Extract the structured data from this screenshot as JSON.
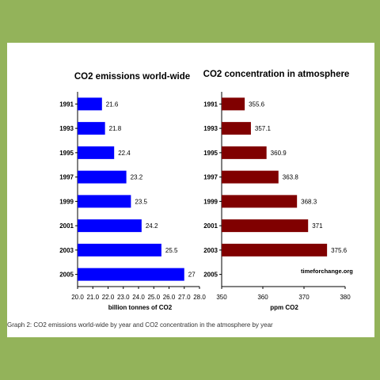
{
  "caption": "Graph 2: CO2 emissions world-wide by year and CO2 concentration in the atmosphere by year",
  "chart_data": [
    {
      "type": "bar",
      "orientation": "horizontal",
      "title": "CO2 emissions world-wide",
      "xlabel": "billion tonnes of CO2",
      "ylabel": "",
      "categories": [
        "1991",
        "1993",
        "1995",
        "1997",
        "1999",
        "2001",
        "2003",
        "2005"
      ],
      "values": [
        21.6,
        21.8,
        22.4,
        23.2,
        23.5,
        24.2,
        25.5,
        27
      ],
      "value_labels": [
        "21.6",
        "21.8",
        "22.4",
        "23.2",
        "23.5",
        "24.2",
        "25.5",
        "27"
      ],
      "xlim": [
        20,
        28
      ],
      "xticks": [
        "20.0",
        "21.0",
        "22.0",
        "23.0",
        "24.0",
        "25.0",
        "26.0",
        "27.0",
        "28.0"
      ],
      "color": "#0000ff",
      "grid": false
    },
    {
      "type": "bar",
      "orientation": "horizontal",
      "title": "CO2 concentration in atmosphere",
      "xlabel": "ppm CO2",
      "ylabel": "",
      "categories": [
        "1991",
        "1993",
        "1995",
        "1997",
        "1999",
        "2001",
        "2003",
        "2005"
      ],
      "values": [
        355.6,
        357.1,
        360.9,
        363.8,
        368.3,
        371,
        375.6,
        null
      ],
      "value_labels": [
        "355.6",
        "357.1",
        "360.9",
        "363.8",
        "368.3",
        "371",
        "375.6",
        ""
      ],
      "xlim": [
        350,
        380
      ],
      "xticks": [
        "350",
        "360",
        "370",
        "380"
      ],
      "color": "#800000",
      "grid": false,
      "annotation": "timeforchange.org"
    }
  ]
}
